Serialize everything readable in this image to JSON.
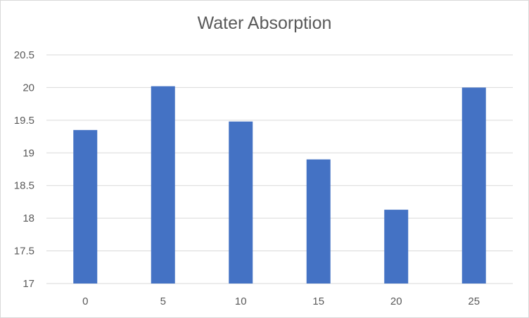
{
  "chart_data": {
    "type": "bar",
    "title": "Water Absorption",
    "categories": [
      "0",
      "5",
      "10",
      "15",
      "20",
      "25"
    ],
    "values": [
      19.35,
      20.02,
      19.48,
      18.9,
      18.13,
      20.0
    ],
    "ylim": [
      17,
      20.5
    ],
    "yticks": [
      "17",
      "17.5",
      "18",
      "18.5",
      "19",
      "19.5",
      "20",
      "20.5"
    ],
    "xlabel": "",
    "ylabel": "",
    "grid": true,
    "legend": "none",
    "colors": {
      "bar": "#4472c4",
      "grid": "#d9d9d9",
      "text": "#595959"
    }
  }
}
